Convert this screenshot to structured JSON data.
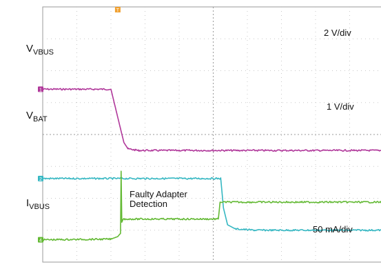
{
  "chart_data": {
    "type": "line",
    "title": "",
    "xlabel": "",
    "ylabel": "",
    "grid": true,
    "divisions": {
      "x": 10,
      "y": 8
    },
    "xlim": [
      0,
      10
    ],
    "series": [
      {
        "name": "V_VBUS",
        "label_main": "V",
        "label_sub": "VBUS",
        "scale": "2 V/div",
        "color": "#b0379a",
        "marker": "1",
        "points": [
          [
            0,
            2.58
          ],
          [
            2.0,
            2.58
          ],
          [
            2.38,
            4.25
          ],
          [
            2.5,
            4.45
          ],
          [
            2.8,
            4.5
          ],
          [
            10,
            4.5
          ]
        ]
      },
      {
        "name": "V_BAT",
        "label_main": "V",
        "label_sub": "BAT",
        "scale": "1 V/div",
        "color": "#35b7c2",
        "marker": "2",
        "points": [
          [
            0,
            5.38
          ],
          [
            5.22,
            5.38
          ],
          [
            5.3,
            6.3
          ],
          [
            5.42,
            6.83
          ],
          [
            5.65,
            6.96
          ],
          [
            6.2,
            7.0
          ],
          [
            10,
            7.0
          ]
        ]
      },
      {
        "name": "I_VBUS",
        "label_main": "I",
        "label_sub": "VBUS",
        "scale": "50 mA/div",
        "color": "#63b934",
        "marker": "4",
        "points": [
          [
            0,
            7.3
          ],
          [
            2.0,
            7.28
          ],
          [
            2.2,
            7.2
          ],
          [
            2.28,
            7.1
          ],
          [
            2.3,
            5.15
          ],
          [
            2.32,
            6.75
          ],
          [
            2.36,
            6.65
          ],
          [
            5.15,
            6.65
          ],
          [
            5.2,
            6.12
          ],
          [
            10,
            6.12
          ]
        ]
      }
    ],
    "annotations": [
      {
        "text": "Faulty Adapter Detection"
      }
    ],
    "trigger_marker": "T"
  }
}
